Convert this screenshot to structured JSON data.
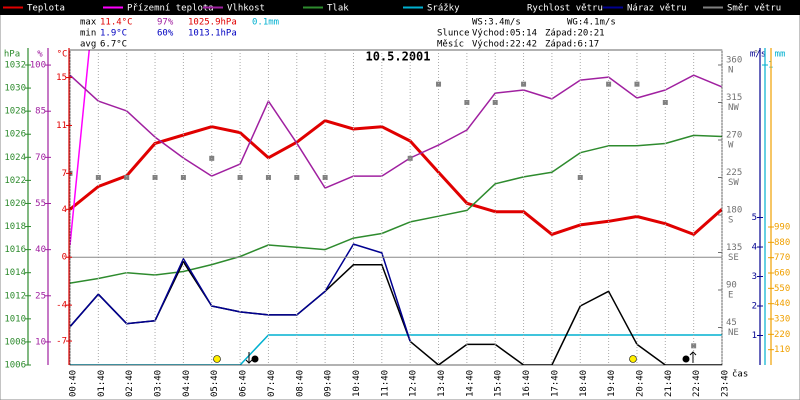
{
  "chart_data": {
    "type": "line",
    "title": "10.5.2001",
    "x_label": "čas",
    "categories": [
      "00:40",
      "01:40",
      "02:40",
      "03:40",
      "04:40",
      "05:40",
      "06:40",
      "07:40",
      "08:40",
      "09:40",
      "10:40",
      "11:40",
      "12:40",
      "13:40",
      "14:40",
      "15:40",
      "16:40",
      "17:40",
      "18:40",
      "19:40",
      "20:40",
      "21:40",
      "22:40",
      "23:40"
    ],
    "axes": {
      "hpa": {
        "label": "hPa",
        "color": "#2e8b2e",
        "lim": [
          1006,
          1033.3
        ],
        "ticks": [
          1006,
          1008,
          1010,
          1012,
          1014,
          1016,
          1018,
          1020,
          1022,
          1024,
          1026,
          1028,
          1030,
          1032
        ]
      },
      "pct": {
        "label": "%",
        "color": "#a020a0",
        "lim": [
          2.5,
          104.9
        ],
        "ticks": [
          10,
          25,
          40,
          55,
          70,
          85,
          100
        ]
      },
      "temp": {
        "label": "°C",
        "color": "#e00000",
        "lim": [
          -9,
          17.3
        ],
        "ticks": [
          -7,
          -4,
          0,
          4,
          7,
          11,
          15
        ]
      },
      "dir": {
        "label": "°",
        "color": "#707070",
        "lim": [
          0,
          378
        ],
        "ticks": [
          {
            "value": 45,
            "label": "NE"
          },
          {
            "value": 90,
            "label": "E"
          },
          {
            "value": 135,
            "label": "SE"
          },
          {
            "value": 180,
            "label": "S"
          },
          {
            "value": 225,
            "label": "SW"
          },
          {
            "value": 270,
            "label": "W"
          },
          {
            "value": 315,
            "label": "NW"
          },
          {
            "value": 360,
            "label": "N"
          }
        ]
      },
      "wind": {
        "label": "m/s",
        "color": "#000090",
        "lim": [
          0,
          10.68
        ],
        "ticks": [
          1,
          2,
          3,
          4,
          5
        ]
      },
      "precip": {
        "label": "mm",
        "color": "#00b0d0",
        "lim": [
          0,
          1.05
        ],
        "ticks": [
          1
        ]
      },
      "light": {
        "color": "#f0a000",
        "lim": [
          0,
          2260
        ],
        "ticks": [
          110,
          220,
          330,
          440,
          550,
          660,
          770,
          880,
          990
        ]
      }
    },
    "baseline": {
      "axis": "temp",
      "value": 0
    },
    "series": [
      {
        "name": "Teplota",
        "color": "#e00000",
        "axis": "temp",
        "width": 3,
        "values": [
          4.0,
          5.9,
          6.8,
          9.5,
          10.2,
          10.9,
          10.4,
          8.3,
          9.6,
          11.4,
          10.7,
          10.9,
          9.7,
          7.1,
          4.5,
          3.8,
          3.8,
          1.9,
          2.7,
          3.0,
          3.4,
          2.8,
          1.9,
          4.0
        ]
      },
      {
        "name": "Přízemní teplota",
        "color": "#ff00ff",
        "axis": "temp",
        "width": 1.5,
        "values": [
          1.0,
          25,
          null,
          null,
          null,
          null,
          null,
          null,
          null,
          null,
          null,
          null,
          null,
          null,
          null,
          null,
          null,
          null,
          null,
          null,
          null,
          null,
          null,
          null
        ]
      },
      {
        "name": "Vlhkost",
        "color": "#a020a0",
        "axis": "pct",
        "width": 1.5,
        "values": [
          96.7,
          88.3,
          85.1,
          76.6,
          69.8,
          63.9,
          67.8,
          88.3,
          74.6,
          60.0,
          63.9,
          63.9,
          69.8,
          74.0,
          78.9,
          90.9,
          91.9,
          89.0,
          95.1,
          96.1,
          89.3,
          91.9,
          96.7,
          92.9
        ]
      },
      {
        "name": "Tlak",
        "color": "#2e8b2e",
        "axis": "hpa",
        "width": 1.5,
        "values": [
          1013.1,
          1013.5,
          1014.0,
          1013.8,
          1014.1,
          1014.7,
          1015.4,
          1016.4,
          1016.2,
          1016.0,
          1017.0,
          1017.4,
          1018.4,
          1018.9,
          1019.4,
          1021.7,
          1022.3,
          1022.7,
          1024.4,
          1025.0,
          1025.0,
          1025.2,
          1025.9,
          1025.8
        ]
      },
      {
        "name": "Srážky",
        "color": "#00b0d0",
        "axis": "precip",
        "width": 1.5,
        "values": [
          0,
          0,
          0,
          0,
          0,
          0,
          0,
          0.1,
          0.1,
          0.1,
          0.1,
          0.1,
          0.1,
          0.1,
          0.1,
          0.1,
          0.1,
          0.1,
          0.1,
          0.1,
          0.1,
          0.1,
          0.1,
          0.1
        ]
      },
      {
        "name": "Rychlost větru",
        "color": "#000000",
        "axis": "wind",
        "width": 1.5,
        "values": [
          1.3,
          2.4,
          1.4,
          1.5,
          3.5,
          2.0,
          1.8,
          1.7,
          1.7,
          2.5,
          3.4,
          3.4,
          0.8,
          0,
          0.7,
          0.7,
          0,
          0,
          2.0,
          2.5,
          0.7,
          0,
          0,
          0
        ]
      },
      {
        "name": "Náraz větru",
        "color": "#000090",
        "axis": "wind",
        "width": 1.5,
        "values": [
          1.3,
          2.4,
          1.4,
          1.5,
          3.6,
          2.0,
          1.8,
          1.7,
          1.7,
          2.5,
          4.1,
          3.8,
          0.8,
          null,
          null,
          null,
          null,
          null,
          null,
          null,
          null,
          null,
          null,
          null
        ]
      },
      {
        "name": "Směr větru",
        "color": "#808080",
        "axis": "dir",
        "marker": "square",
        "values": [
          230,
          225,
          225,
          225,
          225,
          248,
          225,
          225,
          225,
          225,
          null,
          null,
          248,
          337,
          315,
          315,
          337,
          null,
          225,
          337,
          337,
          315,
          23,
          null
        ]
      }
    ],
    "stats": [
      [
        "max",
        "11.4°C",
        "97%",
        "1025.9hPa",
        "0.1mm"
      ],
      [
        "min",
        "1.9°C",
        "60%",
        "1013.1hPa"
      ],
      [
        "avg",
        "6.7°C"
      ]
    ],
    "wind_info": [
      "WS:3.4m/s",
      "WG:4.1m/s"
    ],
    "sun": [
      "Slunce",
      "Východ:05:14",
      "Západ:20:21"
    ],
    "moon": [
      "Měsíc",
      "Východ:22:42",
      "Západ:6:17"
    ]
  }
}
